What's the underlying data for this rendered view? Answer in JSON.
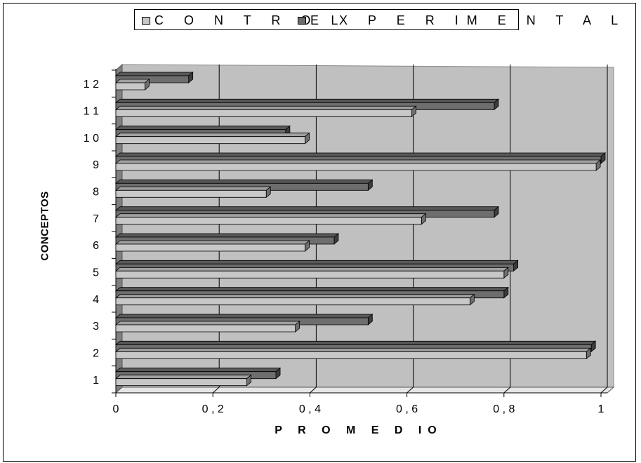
{
  "chart_data": {
    "type": "bar",
    "orientation": "horizontal",
    "three_d": true,
    "categories": [
      "1",
      "2",
      "3",
      "4",
      "5",
      "6",
      "7",
      "8",
      "9",
      "1 0",
      "1 1",
      "1 2"
    ],
    "series": [
      {
        "name": "C O N T R O L",
        "values": [
          0.27,
          0.97,
          0.37,
          0.73,
          0.8,
          0.39,
          0.63,
          0.31,
          0.99,
          0.39,
          0.61,
          0.06
        ],
        "color": "#c8c8c8"
      },
      {
        "name": "E X P E R IM E N T A L",
        "values": [
          0.33,
          0.98,
          0.52,
          0.8,
          0.82,
          0.45,
          0.78,
          0.52,
          1.0,
          0.35,
          0.78,
          0.15
        ],
        "color": "#6e6e6e"
      }
    ],
    "xlabel": "P R O M  E D IO",
    "ylabel": "CONCEPTOS",
    "xlim": [
      0,
      1
    ],
    "x_ticks": [
      "0",
      "0 , 2",
      "0 , 4",
      "0 , 6",
      "0 , 8",
      "1"
    ],
    "grid": true,
    "legend_position": "top"
  },
  "colors": {
    "wall": "#c0c0c0",
    "floor": "#808080",
    "grid": "#000000"
  }
}
